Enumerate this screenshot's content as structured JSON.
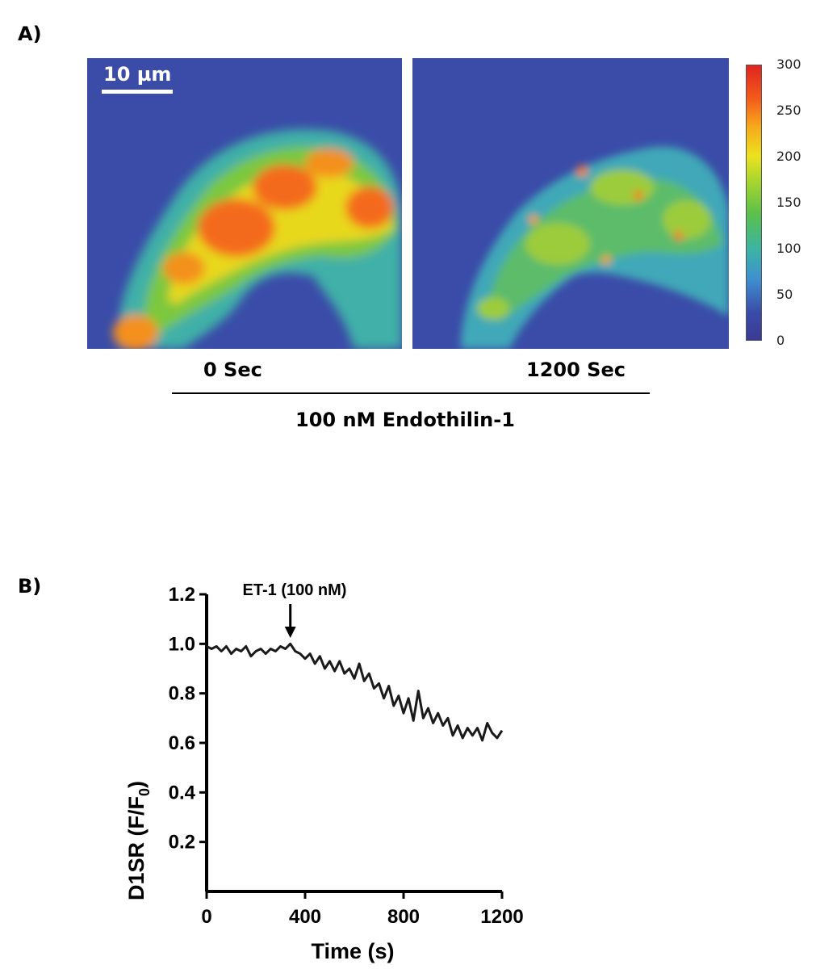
{
  "panel_a": {
    "label": "A)",
    "scale_bar": "10 µm",
    "images": [
      {
        "caption": "0 Sec"
      },
      {
        "caption": "1200 Sec"
      }
    ],
    "treatment": "100 nM Endothilin-1",
    "colorbar": {
      "ticks": [
        "300",
        "250",
        "200",
        "150",
        "100",
        "50",
        "0"
      ],
      "colors": [
        "#3a3a94",
        "#3f8ed0",
        "#5cc04a",
        "#ece21e",
        "#f6a81a",
        "#e0241e"
      ]
    }
  },
  "panel_b": {
    "label": "B)",
    "annotation": "ET-1 (100 nM)",
    "chart_data": {
      "type": "line",
      "xlabel": "Time (s)",
      "ylabel_main": "D1SR (F/F",
      "ylabel_sub": "0",
      "ylabel_end": ")",
      "xlim": [
        0,
        1200
      ],
      "ylim": [
        0,
        1.2
      ],
      "xticks": [
        0,
        400,
        800,
        1200
      ],
      "yticks": [
        0.2,
        0.4,
        0.6,
        0.8,
        1.0,
        1.2
      ],
      "ytick_labels": [
        "0.2",
        "0.4",
        "0.6",
        "0.8",
        "1.0",
        "1.2"
      ],
      "annotation_x": 340,
      "series": [
        {
          "x": [
            0,
            20,
            40,
            60,
            80,
            100,
            120,
            140,
            160,
            180,
            200,
            220,
            240,
            260,
            280,
            300,
            320,
            340,
            360,
            380,
            400,
            420,
            440,
            460,
            480,
            500,
            520,
            540,
            560,
            580,
            600,
            620,
            640,
            660,
            680,
            700,
            720,
            740,
            760,
            780,
            800,
            820,
            840,
            860,
            880,
            900,
            920,
            940,
            960,
            980,
            1000,
            1020,
            1040,
            1060,
            1080,
            1100,
            1120,
            1140,
            1160,
            1180,
            1200
          ],
          "y": [
            0.99,
            0.98,
            0.99,
            0.97,
            0.99,
            0.96,
            0.98,
            0.97,
            0.99,
            0.95,
            0.97,
            0.98,
            0.96,
            0.98,
            0.97,
            0.99,
            0.98,
            1.0,
            0.97,
            0.96,
            0.94,
            0.96,
            0.92,
            0.95,
            0.9,
            0.93,
            0.89,
            0.93,
            0.88,
            0.9,
            0.86,
            0.92,
            0.85,
            0.88,
            0.82,
            0.84,
            0.78,
            0.83,
            0.75,
            0.79,
            0.72,
            0.78,
            0.69,
            0.81,
            0.7,
            0.74,
            0.68,
            0.72,
            0.67,
            0.7,
            0.63,
            0.67,
            0.62,
            0.66,
            0.63,
            0.66,
            0.61,
            0.68,
            0.64,
            0.62,
            0.65
          ]
        }
      ]
    }
  }
}
